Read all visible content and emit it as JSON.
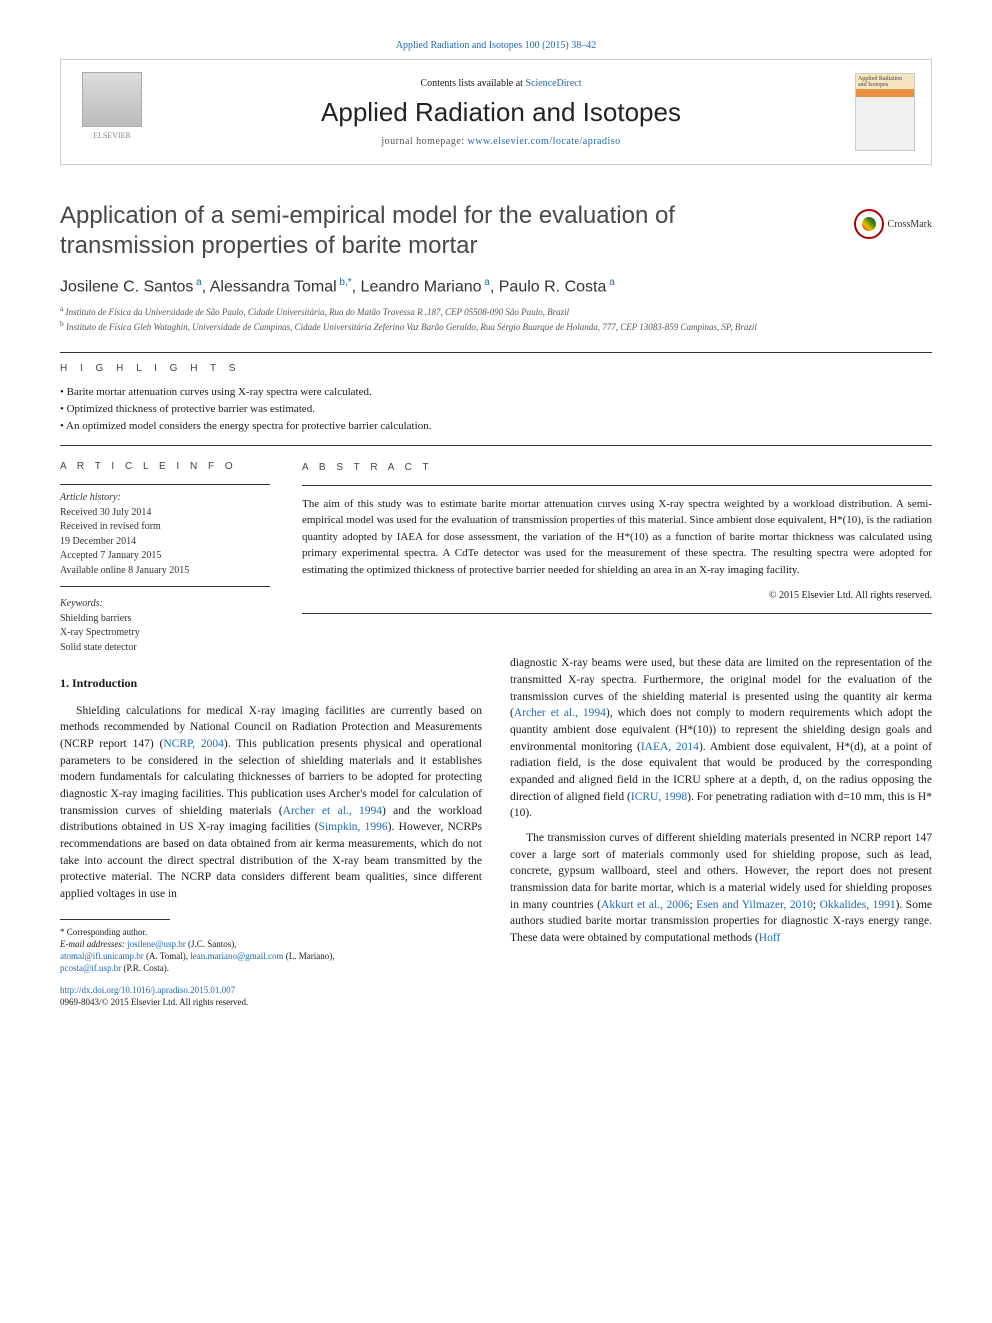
{
  "journal_ref": "Applied Radiation and Isotopes 100 (2015) 38–42",
  "header": {
    "contents_prefix": "Contents lists available at ",
    "contents_link": "ScienceDirect",
    "journal_title": "Applied Radiation and Isotopes",
    "homepage_prefix": "journal homepage: ",
    "homepage_link": "www.elsevier.com/locate/apradiso",
    "elsevier_label": "ELSEVIER",
    "cover_text": "Applied Radiation and Isotopes"
  },
  "crossmark_label": "CrossMark",
  "article": {
    "title": "Application of a semi-empirical model for the evaluation of transmission properties of barite mortar",
    "authors_html": "Josilene C. Santos<sup> a</sup>, Alessandra Tomal<sup> b,*</sup>, Leandro Mariano<sup> a</sup>, Paulo R. Costa<sup> a</sup>",
    "affiliations": [
      "a Instituto de Física da Universidade de São Paulo, Cidade Universitária, Rua do Matão Travessa R .187, CEP 05508-090 São Paulo, Brazil",
      "b Instituto de Física Gleb Wataghin, Universidade de Campinas, Cidade Universitária Zeferino Vaz Barão Geraldo, Rua Sérgio Buarque de Holanda, 777, CEP 13083-859 Campinas, SP, Brazil"
    ]
  },
  "highlights": {
    "label": "H I G H L I G H T S",
    "items": [
      "Barite mortar attenuation curves using X-ray spectra were calculated.",
      "Optimized thickness of protective barrier was estimated.",
      "An optimized model considers the energy spectra for protective barrier calculation."
    ]
  },
  "article_info": {
    "label": "A R T I C L E  I N F O",
    "history_label": "Article history:",
    "history": [
      "Received 30 July 2014",
      "Received in revised form",
      "19 December 2014",
      "Accepted 7 January 2015",
      "Available online 8 January 2015"
    ],
    "keywords_label": "Keywords:",
    "keywords": [
      "Shielding barriers",
      "X-ray Spectrometry",
      "Solid state detector"
    ]
  },
  "abstract": {
    "label": "A B S T R A C T",
    "text": "The aim of this study was to estimate barite mortar attenuation curves using X-ray spectra weighted by a workload distribution. A semi-empirical model was used for the evaluation of transmission properties of this material. Since ambient dose equivalent, H*(10), is the radiation quantity adopted by IAEA for dose assessment, the variation of the H*(10) as a function of barite mortar thickness was calculated using primary experimental spectra. A CdTe detector was used for the measurement of these spectra. The resulting spectra were adopted for estimating the optimized thickness of protective barrier needed for shielding an area in an X-ray imaging facility.",
    "copyright": "© 2015 Elsevier Ltd. All rights reserved."
  },
  "intro": {
    "heading": "1.  Introduction",
    "p1_pre": "Shielding calculations for medical X-ray imaging facilities are currently based on methods recommended by National Council on Radiation Protection and Measurements (NCRP report 147) (",
    "p1_link1": "NCRP, 2004",
    "p1_mid1": "). This publication presents physical and operational parameters to be considered in the selection of shielding materials and it establishes modern fundamentals for calculating thicknesses of barriers to be adopted for protecting diagnostic X-ray imaging facilities. This publication uses Archer's model for calculation of transmission curves of shielding materials (",
    "p1_link2": "Archer et al., 1994",
    "p1_mid2": ") and the workload distributions obtained in US X-ray imaging facilities (",
    "p1_link3": "Simpkin, 1996",
    "p1_post": "). However, NCRPs recommendations are based on data obtained from air kerma measurements, which do not take into account the direct spectral distribution of the X-ray beam transmitted by the protective material. The NCRP data considers different beam qualities, since different applied voltages in use in",
    "p2_pre": "diagnostic X-ray beams were used, but these data are limited on the representation of the transmitted X-ray spectra. Furthermore, the original model for the evaluation of the transmission curves of the shielding material is presented using the quantity air kerma (",
    "p2_link1": "Archer et al., 1994",
    "p2_mid1": "), which does not comply to modern requirements which adopt the quantity ambient dose equivalent (H*(10)) to represent the shielding design goals and environmental monitoring (",
    "p2_link2": "IAEA, 2014",
    "p2_mid2": "). Ambient dose equivalent, H*(d), at a point of radiation field, is the dose equivalent that would be produced by the corresponding expanded and aligned field in the ICRU sphere at a depth, d, on the radius opposing the direction of aligned field (",
    "p2_link3": "ICRU, 1998",
    "p2_post": "). For penetrating radiation with d=10 mm, this is H*(10).",
    "p3_pre": "The transmission curves of different shielding materials presented in NCRP report 147 cover a large sort of materials commonly used for shielding propose, such as lead, concrete, gypsum wallboard, steel and others. However, the report does not present transmission data for barite mortar, which is a material widely used for shielding proposes in many countries (",
    "p3_link1": "Akkurt et al., 2006",
    "p3_sep1": "; ",
    "p3_link2": "Esen and Yilmazer, 2010",
    "p3_sep2": "; ",
    "p3_link3": "Okkalides, 1991",
    "p3_mid": "). Some authors studied barite mortar transmission properties for diagnostic X-rays energy range. These data were obtained by computational methods (",
    "p3_link4": "Hoff"
  },
  "footnotes": {
    "corr": "* Corresponding author.",
    "emails_label": "E-mail addresses: ",
    "emails": [
      {
        "addr": "josilene@usp.br",
        "name": " (J.C. Santos),"
      },
      {
        "addr": "atomal@ifi.unicamp.br",
        "name": " (A. Tomal), "
      },
      {
        "addr": "lean.mariano@gmail.com",
        "name": " (L. Mariano),"
      },
      {
        "addr": "pcosta@if.usp.br",
        "name": " (P.R. Costa)."
      }
    ]
  },
  "footer": {
    "doi": "http://dx.doi.org/10.1016/j.apradiso.2015.01.007",
    "issn_line": "0969-8043/© 2015 Elsevier Ltd. All rights reserved."
  },
  "colors": {
    "link": "#2169b4",
    "text": "#1a1a1a",
    "heading": "#484848",
    "rule": "#333333"
  }
}
